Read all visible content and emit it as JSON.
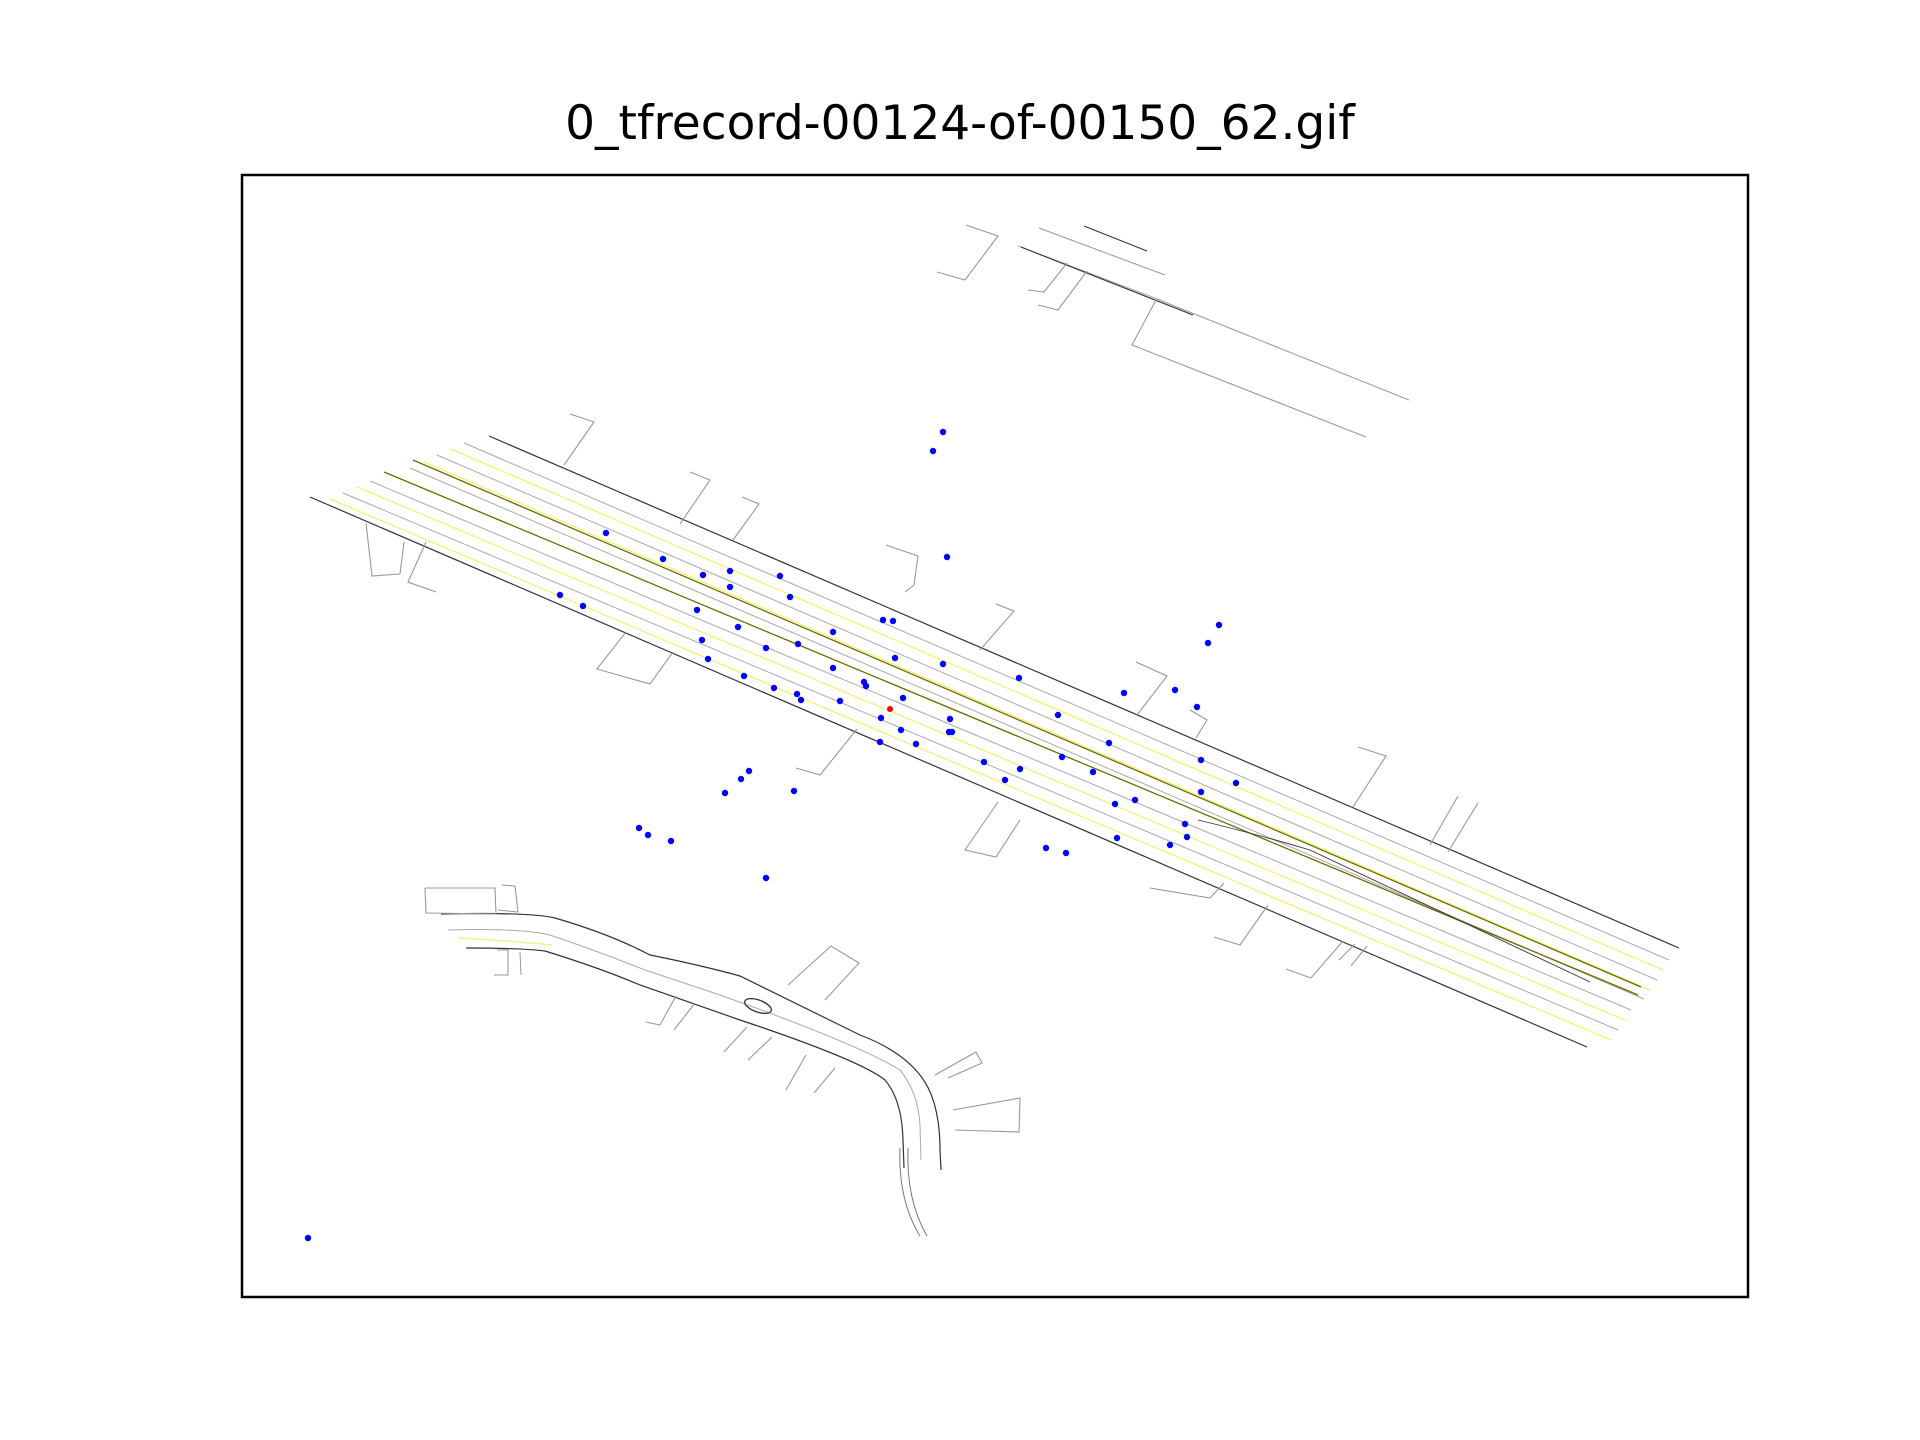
{
  "title": "0_tfrecord-00124-of-00150_62.gif",
  "colors": {
    "frame": "#000000",
    "road_edge": "#333333",
    "lane": "#aaaaaa",
    "lane_yellow": "#f2ef7a",
    "center_line": "#6b6b00",
    "agent": "#0000ff",
    "ego": "#ff0000"
  },
  "legend": "none",
  "grid": false,
  "agents_count": 72,
  "ego_count": 1
}
